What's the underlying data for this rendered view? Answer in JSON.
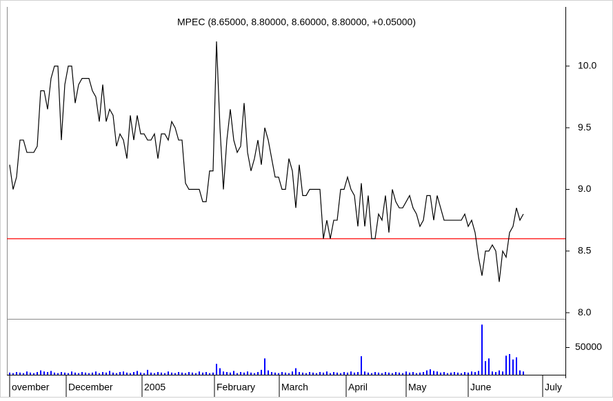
{
  "chart_data": [
    {
      "type": "line",
      "title": "MPEC (8.65000, 8.80000, 8.60000, 8.80000, +0.05000)",
      "color": "#000000",
      "x": [
        0,
        1,
        2,
        3,
        4,
        5,
        6,
        7,
        8,
        9,
        10,
        11,
        12,
        13,
        14,
        15,
        16,
        17,
        18,
        19,
        20,
        21,
        22,
        23,
        24,
        25,
        26,
        27,
        28,
        29,
        30,
        31,
        32,
        33,
        34,
        35,
        36,
        37,
        38,
        39,
        40,
        41,
        42,
        43,
        44,
        45,
        46,
        47,
        48,
        49,
        50,
        51,
        52,
        53,
        54,
        55,
        56,
        57,
        58,
        59,
        60,
        61,
        62,
        63,
        64,
        65,
        66,
        67,
        68,
        69,
        70,
        71,
        72,
        73,
        74,
        75,
        76,
        77,
        78,
        79,
        80,
        81,
        82,
        83,
        84,
        85,
        86,
        87,
        88,
        89,
        90,
        91,
        92,
        93,
        94,
        95,
        96,
        97,
        98,
        99,
        100,
        101,
        102,
        103,
        104,
        105,
        106,
        107,
        108,
        109,
        110,
        111,
        112,
        113,
        114,
        115,
        116,
        117,
        118,
        119,
        120,
        121,
        122,
        123,
        124,
        125,
        126,
        127,
        128,
        129,
        130,
        131,
        132,
        133,
        134,
        135,
        136,
        137,
        138,
        139,
        140,
        141,
        142,
        143,
        144,
        145,
        146,
        147,
        148,
        149
      ],
      "values": [
        9.2,
        9.0,
        9.1,
        9.4,
        9.4,
        9.3,
        9.3,
        9.3,
        9.35,
        9.8,
        9.8,
        9.65,
        9.9,
        10.0,
        10.0,
        9.4,
        9.85,
        10.0,
        10.0,
        9.7,
        9.85,
        9.9,
        9.9,
        9.9,
        9.8,
        9.75,
        9.55,
        9.85,
        9.55,
        9.65,
        9.6,
        9.35,
        9.45,
        9.4,
        9.25,
        9.6,
        9.4,
        9.6,
        9.45,
        9.45,
        9.4,
        9.4,
        9.45,
        9.25,
        9.45,
        9.45,
        9.4,
        9.55,
        9.5,
        9.4,
        9.4,
        9.05,
        9.0,
        9.0,
        9.0,
        9.0,
        8.9,
        8.9,
        9.15,
        9.15,
        10.2,
        9.5,
        9.0,
        9.4,
        9.65,
        9.4,
        9.3,
        9.35,
        9.7,
        9.3,
        9.15,
        9.25,
        9.4,
        9.2,
        9.5,
        9.4,
        9.25,
        9.1,
        9.1,
        9.0,
        9.0,
        9.25,
        9.15,
        8.85,
        9.2,
        8.95,
        8.95,
        9.0,
        9.0,
        9.0,
        9.0,
        8.6,
        8.75,
        8.6,
        8.75,
        8.75,
        9.0,
        9.0,
        9.1,
        9.0,
        8.95,
        8.7,
        9.05,
        8.7,
        8.95,
        8.6,
        8.6,
        8.8,
        8.75,
        8.95,
        8.65,
        9.0,
        8.9,
        8.85,
        8.85,
        8.9,
        8.95,
        8.85,
        8.8,
        8.7,
        8.75,
        8.95,
        8.95,
        8.75,
        8.95,
        8.85,
        8.75,
        8.75,
        8.75,
        8.75,
        8.75,
        8.75,
        8.8,
        8.7,
        8.75,
        8.65,
        8.45,
        8.3,
        8.5,
        8.5,
        8.55,
        8.5,
        8.25,
        8.5,
        8.45,
        8.65,
        8.7,
        8.85,
        8.75,
        8.8
      ],
      "hline": 8.6,
      "hline_color": "#ff0000",
      "xlim": [
        -0.8,
        161.2
      ],
      "xticks": [
        {
          "value": 0,
          "label": "ovember"
        },
        {
          "value": 16.4,
          "label": "December"
        },
        {
          "value": 38.4,
          "label": "2005"
        },
        {
          "value": 59.4,
          "label": "February"
        },
        {
          "value": 78.2,
          "label": "March"
        },
        {
          "value": 97.6,
          "label": "April"
        },
        {
          "value": 115,
          "label": "May"
        },
        {
          "value": 133,
          "label": "June"
        },
        {
          "value": 154.6,
          "label": "July"
        }
      ],
      "ylim": [
        7.95,
        10.48
      ],
      "yticks": [
        {
          "value": 8,
          "label": "8.0"
        },
        {
          "value": 8.5,
          "label": "8.5"
        },
        {
          "value": 9,
          "label": "9.0"
        },
        {
          "value": 9.5,
          "label": "9.5"
        },
        {
          "value": 10,
          "label": "10.0"
        }
      ]
    },
    {
      "type": "bar",
      "color": "#0000ff",
      "values": [
        4000,
        3000,
        5000,
        4000,
        3000,
        6000,
        4000,
        3000,
        5000,
        8000,
        6000,
        5000,
        7000,
        4000,
        3000,
        5000,
        4000,
        3000,
        6000,
        4000,
        3000,
        5000,
        4000,
        3000,
        4000,
        6000,
        3000,
        5000,
        4000,
        7000,
        4000,
        3000,
        5000,
        6000,
        4000,
        3000,
        5000,
        7000,
        4000,
        3000,
        9000,
        4000,
        3000,
        5000,
        4000,
        3000,
        6000,
        4000,
        3000,
        5000,
        4000,
        3000,
        5000,
        4000,
        3000,
        6000,
        4000,
        5000,
        3000,
        4000,
        20000,
        12000,
        6000,
        5000,
        4000,
        7000,
        3000,
        5000,
        4000,
        6000,
        4000,
        3000,
        5000,
        9000,
        30000,
        8000,
        5000,
        4000,
        3000,
        5000,
        4000,
        3000,
        6000,
        12000,
        5000,
        4000,
        3000,
        5000,
        4000,
        3000,
        5000,
        4000,
        6000,
        3000,
        5000,
        4000,
        3000,
        5000,
        4000,
        6000,
        4000,
        5000,
        34000,
        6000,
        4000,
        3000,
        5000,
        4000,
        3000,
        5000,
        4000,
        3000,
        5000,
        4000,
        3000,
        6000,
        4000,
        5000,
        3000,
        4000,
        5000,
        8000,
        10000,
        7000,
        6000,
        4000,
        5000,
        3000,
        4000,
        5000,
        4000,
        3000,
        5000,
        4000,
        6000,
        5000,
        7000,
        92000,
        25000,
        30000,
        6000,
        5000,
        8000,
        6000,
        35000,
        38000,
        28000,
        32000,
        8000,
        6000
      ],
      "ylim": [
        0,
        102500
      ],
      "yticks": [
        50000
      ]
    }
  ]
}
